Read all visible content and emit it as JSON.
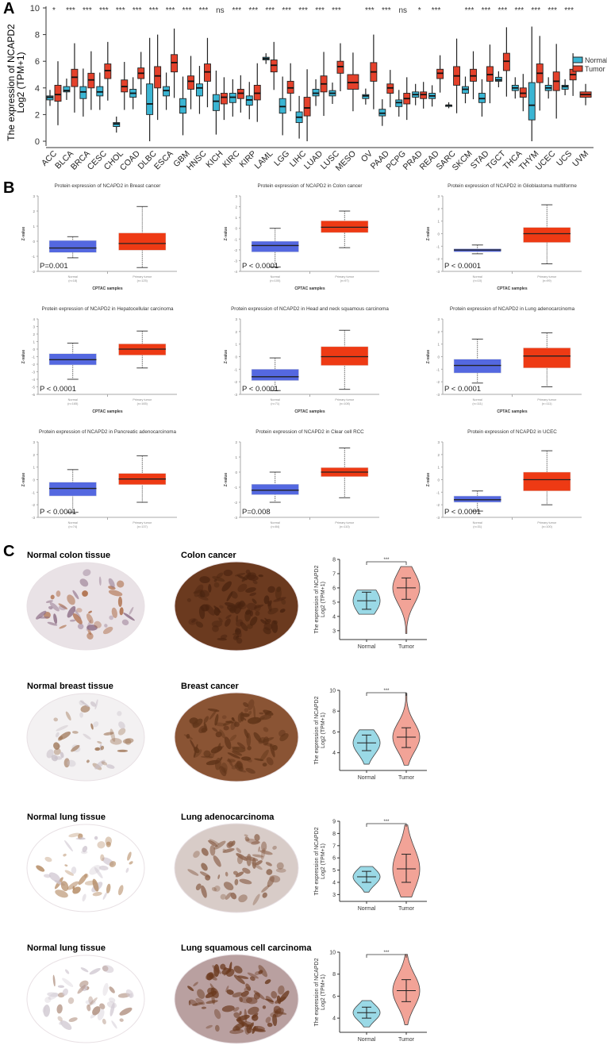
{
  "panel_labels": {
    "a": "A",
    "b": "B",
    "c": "C"
  },
  "colors": {
    "normal_a": "#3bb5d3",
    "tumor_a": "#e4412b",
    "normal_b": "#5468e0",
    "tumor_b": "#ee3a14",
    "normal_c": "#9ad9e6",
    "tumor_c": "#f2a397"
  },
  "chart_data": [
    {
      "type": "box",
      "ylabel_line1": "The expression of NCAPD2",
      "ylabel_line2": "Log2 (TPM+1)",
      "ylim": [
        0,
        10
      ],
      "yticks": [
        "0",
        "2",
        "4",
        "6",
        "8",
        "10"
      ],
      "legend": {
        "placement": "right",
        "normal": "Normal",
        "tumor": "Tumor"
      },
      "categories": [
        "ACC",
        "BLCA",
        "BRCA",
        "CESC",
        "CHOL",
        "COAD",
        "DLBC",
        "ESCA",
        "GBM",
        "HNSC",
        "KICH",
        "KIRC",
        "KIRP",
        "LAML",
        "LGG",
        "LIHC",
        "LUAD",
        "LUSC",
        "MESO",
        "OV",
        "PAAD",
        "PCPG",
        "PRAD",
        "READ",
        "SARC",
        "SKCM",
        "STAD",
        "TGCT",
        "THCA",
        "THYM",
        "UCEC",
        "UCS",
        "UVM"
      ],
      "significance": [
        "*",
        "***",
        "***",
        "***",
        "***",
        "***",
        "***",
        "***",
        "***",
        "***",
        "ns",
        "***",
        "***",
        "***",
        "***",
        "***",
        "***",
        "***",
        "",
        "***",
        "***",
        "ns",
        "*",
        "***",
        "",
        "***",
        "***",
        "***",
        "***",
        "***",
        "***",
        "***",
        ""
      ],
      "normal": [
        [
          3.1,
          3.3,
          3.4
        ],
        [
          3.7,
          3.8,
          4.1
        ],
        [
          3.2,
          3.7,
          4.1
        ],
        [
          3.4,
          3.7,
          4.1
        ],
        [
          1.1,
          1.3,
          1.4
        ],
        [
          3.3,
          3.6,
          3.9
        ],
        [
          2.0,
          2.8,
          4.3
        ],
        [
          3.4,
          3.8,
          4.1
        ],
        [
          2.1,
          2.6,
          3.2
        ],
        [
          3.4,
          4.0,
          4.3
        ],
        [
          2.3,
          3.0,
          3.5
        ],
        [
          2.9,
          3.3,
          3.6
        ],
        [
          2.7,
          3.1,
          3.4
        ],
        [
          6.1,
          6.2,
          6.3
        ],
        [
          2.1,
          2.6,
          3.2
        ],
        [
          1.4,
          1.8,
          2.2
        ],
        [
          3.4,
          3.6,
          3.9
        ],
        [
          3.4,
          3.6,
          3.8
        ],
        null,
        [
          3.2,
          3.4,
          3.5
        ],
        [
          1.9,
          2.1,
          2.4
        ],
        [
          2.6,
          2.9,
          3.1
        ],
        [
          3.3,
          3.5,
          3.7
        ],
        [
          3.2,
          3.4,
          3.6
        ],
        [
          2.7,
          2.7,
          2.7
        ],
        [
          3.6,
          3.9,
          4.1
        ],
        [
          2.9,
          3.2,
          3.6
        ],
        [
          4.5,
          4.6,
          4.8
        ],
        [
          3.8,
          4.0,
          4.2
        ],
        [
          1.6,
          2.7,
          4.4
        ],
        [
          3.8,
          4.0,
          4.2
        ],
        [
          3.9,
          4.1,
          4.2
        ],
        null
      ],
      "tumor": [
        [
          3.0,
          3.5,
          4.2
        ],
        [
          4.1,
          4.8,
          5.4
        ],
        [
          4.0,
          4.6,
          5.1
        ],
        [
          4.7,
          5.3,
          5.8
        ],
        [
          3.7,
          4.1,
          4.6
        ],
        [
          4.7,
          5.1,
          5.5
        ],
        [
          4.0,
          4.9,
          5.6
        ],
        [
          5.2,
          5.9,
          6.5
        ],
        [
          3.9,
          4.5,
          4.9
        ],
        [
          4.5,
          5.2,
          5.8
        ],
        [
          2.8,
          3.3,
          3.6
        ],
        [
          3.2,
          3.6,
          3.9
        ],
        [
          3.1,
          3.6,
          4.2
        ],
        [
          5.2,
          5.7,
          6.1
        ],
        [
          3.6,
          4.0,
          4.5
        ],
        [
          1.9,
          2.5,
          3.3
        ],
        [
          3.7,
          4.3,
          4.9
        ],
        [
          5.1,
          5.6,
          6.0
        ],
        [
          3.9,
          4.4,
          5.0
        ],
        [
          4.5,
          5.2,
          5.9
        ],
        [
          3.6,
          4.0,
          4.3
        ],
        [
          2.8,
          3.2,
          3.6
        ],
        [
          3.2,
          3.5,
          3.7
        ],
        [
          4.7,
          5.1,
          5.4
        ],
        [
          4.2,
          4.9,
          5.6
        ],
        [
          4.5,
          4.9,
          5.4
        ],
        [
          4.5,
          5.0,
          5.6
        ],
        [
          5.3,
          6.0,
          6.6
        ],
        [
          3.3,
          3.6,
          4.0
        ],
        [
          4.4,
          5.1,
          5.8
        ],
        [
          3.8,
          4.5,
          5.2
        ],
        [
          4.6,
          5.0,
          5.4
        ],
        [
          3.3,
          3.5,
          3.7
        ]
      ]
    },
    {
      "type": "box",
      "panels": [
        {
          "title": "Protein expression of NCAPD2 in Breast cancer",
          "p": "P=0.001",
          "ylim": [
            -2,
            3
          ],
          "normal_label": "Normal",
          "normal_n": "(n=18)",
          "tumor_label": "Primary tumor",
          "tumor_n": "(n=125)",
          "normal": [
            -1.1,
            -0.75,
            -0.45,
            0.05,
            0.3
          ],
          "tumor": [
            -1.75,
            -0.6,
            -0.15,
            0.55,
            2.3
          ]
        },
        {
          "title": "Protein expression of NCAPD2 in Colon cancer",
          "p": "P < 0.0001",
          "ylim": [
            -4,
            3
          ],
          "normal_label": "Normal",
          "normal_n": "(n=100)",
          "tumor_label": "Primary tumor",
          "tumor_n": "(n=97)",
          "normal": [
            -3.6,
            -2.2,
            -1.6,
            -1.2,
            0
          ],
          "tumor": [
            -1.8,
            -0.4,
            0.1,
            0.7,
            1.6
          ]
        },
        {
          "title": "Protein expression of NCAPD2 in Glioblastoma multiforme",
          "p": "P < 0.0001",
          "ylim": [
            -3,
            3
          ],
          "normal_label": "Normal",
          "normal_n": "(n=10)",
          "tumor_label": "Primary tumor",
          "tumor_n": "(n=99)",
          "normal": [
            -1.6,
            -1.45,
            -1.3,
            -1.2,
            -0.9
          ],
          "tumor": [
            -2.4,
            -0.7,
            0,
            0.5,
            2.3
          ]
        },
        {
          "title": "Protein expression of NCAPD2 in Hepatocellular carcinoma",
          "p": "P < 0.0001",
          "ylim": [
            -6,
            4
          ],
          "normal_label": "Normal",
          "normal_n": "(n=165)",
          "tumor_label": "Primary tumor",
          "tumor_n": "(n=165)",
          "normal": [
            -4,
            -2.1,
            -1.4,
            -0.6,
            0.8
          ],
          "tumor": [
            -2.5,
            -0.8,
            0,
            0.7,
            2.4
          ]
        },
        {
          "title": "Protein expression of NCAPD2 in Head and neck squamous carcinoma",
          "p": "P < 0.0001",
          "ylim": [
            -3,
            3
          ],
          "normal_label": "Normal",
          "normal_n": "(n=71)",
          "tumor_label": "Primary tumor",
          "tumor_n": "(n=108)",
          "normal": [
            -2.7,
            -1.9,
            -1.6,
            -1.0,
            -0.1
          ],
          "tumor": [
            -2.6,
            -0.7,
            0,
            0.8,
            2.1
          ]
        },
        {
          "title": "Protein expression of NCAPD2 in Lung adenocarcinoma",
          "p": "P < 0.0001",
          "ylim": [
            -3,
            3
          ],
          "normal_label": "Normal",
          "normal_n": "(n=111)",
          "tumor_label": "Primary tumor",
          "tumor_n": "(n=111)",
          "normal": [
            -2.1,
            -1.3,
            -0.7,
            -0.2,
            1.4
          ],
          "tumor": [
            -2.4,
            -0.9,
            0.05,
            0.7,
            1.9
          ]
        },
        {
          "title": "Protein expression of NCAPD2 in Pancreatic adenocarcinoma",
          "p": "P < 0.0001",
          "ylim": [
            -3,
            3
          ],
          "normal_label": "Normal",
          "normal_n": "(n=74)",
          "tumor_label": "Primary tumor",
          "tumor_n": "(n=137)",
          "normal": [
            -2.6,
            -1.3,
            -0.7,
            -0.2,
            0.8
          ],
          "tumor": [
            -1.8,
            -0.4,
            0.05,
            0.5,
            1.9
          ]
        },
        {
          "title": "Protein expression of NCAPD2 in Clear cell RCC",
          "p": "P=0.008",
          "ylim": [
            -3,
            2
          ],
          "normal_label": "Normal",
          "normal_n": "(n=84)",
          "tumor_label": "Primary tumor",
          "tumor_n": "(n=110)",
          "normal": [
            -2.0,
            -1.5,
            -1.2,
            -0.8,
            0
          ],
          "tumor": [
            -1.7,
            -0.3,
            0,
            0.3,
            1.6
          ]
        },
        {
          "title": "Protein expression of NCAPD2 in UCEC",
          "p": "P < 0.0001",
          "ylim": [
            -3,
            3
          ],
          "normal_label": "Normal",
          "normal_n": "(n=31)",
          "tumor_label": "Primary tumor",
          "tumor_n": "(n=100)",
          "normal": [
            -2.5,
            -1.8,
            -1.6,
            -1.3,
            -0.9
          ],
          "tumor": [
            -2.0,
            -0.9,
            0,
            0.6,
            2.3
          ]
        }
      ],
      "ylabel": "Z-value",
      "xlabel": "CPTAC samples"
    },
    {
      "type": "violin",
      "ylabel_line1": "The expression of NCAPD2",
      "ylabel_line2": "Log2 (TPM+1)",
      "categories": [
        "Normal",
        "Tumor"
      ],
      "significance": "***",
      "rows": [
        {
          "normal_title": "Normal colon tissue",
          "tumor_title": "Colon cancer",
          "ylim": [
            2.6,
            8
          ],
          "yticks": [
            "3",
            "4",
            "5",
            "6",
            "7",
            "8"
          ],
          "normal": [
            4.15,
            4.5,
            5.1,
            5.7,
            5.85
          ],
          "tumor": [
            2.8,
            5.2,
            6.0,
            6.7,
            7.5
          ]
        },
        {
          "normal_title": "Normal breast  tissue",
          "tumor_title": "Breast cancer",
          "ylim": [
            2.6,
            10
          ],
          "yticks": [
            "4",
            "6",
            "8",
            "10"
          ],
          "normal": [
            2.9,
            4.2,
            4.95,
            5.7,
            6.2
          ],
          "tumor": [
            2.8,
            4.5,
            5.5,
            6.4,
            9.7
          ]
        },
        {
          "normal_title": "Normal lung tissue",
          "tumor_title": "Lung adenocarcinoma",
          "ylim": [
            2.7,
            9
          ],
          "yticks": [
            "3",
            "4",
            "5",
            "6",
            "7",
            "8",
            "9"
          ],
          "normal": [
            3.2,
            4.0,
            4.45,
            4.9,
            5.3
          ],
          "tumor": [
            2.8,
            4.0,
            5.1,
            6.3,
            8.7
          ]
        },
        {
          "normal_title": "Normal lung tissue",
          "tumor_title": "Lung squamous cell carcinoma",
          "ylim": [
            3,
            10
          ],
          "yticks": [
            "4",
            "6",
            "8",
            "10"
          ],
          "normal": [
            3.2,
            4.0,
            4.5,
            5.0,
            5.6
          ],
          "tumor": [
            3.4,
            5.5,
            6.5,
            7.5,
            9.8
          ]
        }
      ]
    }
  ]
}
